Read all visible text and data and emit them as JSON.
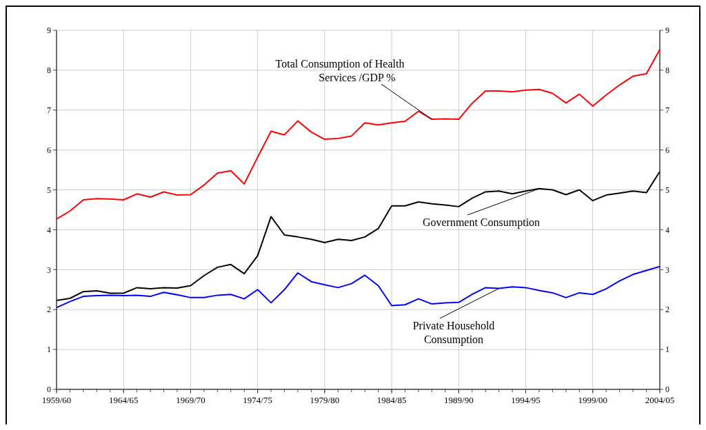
{
  "chart_data": {
    "type": "line",
    "categories": [
      "1959/60",
      null,
      null,
      null,
      null,
      "1964/65",
      null,
      null,
      null,
      null,
      "1969/70",
      null,
      null,
      null,
      null,
      "1974/75",
      null,
      null,
      null,
      null,
      "1979/80",
      null,
      null,
      null,
      null,
      "1984/85",
      null,
      null,
      null,
      null,
      "1989/90",
      null,
      null,
      null,
      null,
      "1994/95",
      null,
      null,
      null,
      null,
      "1999/00",
      null,
      null,
      null,
      null,
      "2004/05"
    ],
    "ylim": [
      0,
      9
    ],
    "yticks": [
      0,
      1,
      2,
      3,
      4,
      5,
      6,
      7,
      8,
      9
    ],
    "y2lim": [
      0,
      9
    ],
    "y2ticks": [
      0,
      1,
      2,
      3,
      4,
      5,
      6,
      7,
      8,
      9
    ],
    "grid": true,
    "series": [
      {
        "name": "Total Consumption of Health Services /GDP %",
        "color": "#ff0000",
        "values": [
          4.27,
          4.47,
          4.75,
          4.78,
          4.77,
          4.75,
          4.9,
          4.82,
          4.95,
          4.87,
          4.88,
          5.12,
          5.42,
          5.48,
          5.15,
          5.82,
          6.47,
          6.38,
          6.73,
          6.45,
          6.27,
          6.29,
          6.35,
          6.68,
          6.63,
          6.68,
          6.72,
          6.97,
          6.77,
          6.78,
          6.77,
          7.17,
          7.48,
          7.48,
          7.46,
          7.5,
          7.52,
          7.42,
          7.18,
          7.4,
          7.1,
          7.38,
          7.63,
          7.85,
          7.91,
          8.52
        ]
      },
      {
        "name": "Government Consumption",
        "color": "#000000",
        "values": [
          2.23,
          2.28,
          2.45,
          2.47,
          2.41,
          2.41,
          2.55,
          2.52,
          2.55,
          2.54,
          2.6,
          2.85,
          3.06,
          3.13,
          2.9,
          3.35,
          4.33,
          3.87,
          3.82,
          3.76,
          3.68,
          3.76,
          3.73,
          3.82,
          4.03,
          4.6,
          4.6,
          4.7,
          4.65,
          4.62,
          4.58,
          4.79,
          4.95,
          4.97,
          4.9,
          4.97,
          5.03,
          5.0,
          4.88,
          5.0,
          4.73,
          4.87,
          4.92,
          4.97,
          4.93,
          5.46
        ]
      },
      {
        "name": "Private Household Consumption",
        "color": "#0000ff",
        "values": [
          2.05,
          2.2,
          2.33,
          2.35,
          2.36,
          2.35,
          2.36,
          2.33,
          2.43,
          2.37,
          2.3,
          2.3,
          2.36,
          2.38,
          2.27,
          2.5,
          2.17,
          2.5,
          2.92,
          2.7,
          2.62,
          2.55,
          2.65,
          2.86,
          2.6,
          2.1,
          2.12,
          2.27,
          2.14,
          2.17,
          2.18,
          2.38,
          2.55,
          2.53,
          2.57,
          2.55,
          2.48,
          2.42,
          2.3,
          2.42,
          2.38,
          2.52,
          2.72,
          2.88,
          2.98,
          3.08
        ]
      }
    ]
  }
}
